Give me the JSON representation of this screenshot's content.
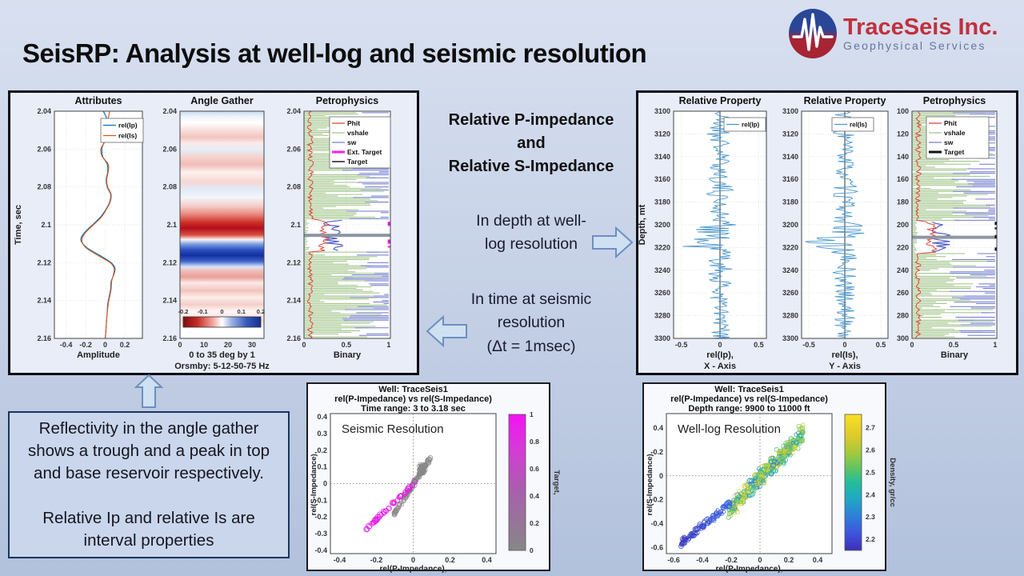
{
  "header": {
    "title": "SeisRP: Analysis at well-log and seismic resolution"
  },
  "logo": {
    "company": "TraceSeis Inc.",
    "tagline": "Geophysical Services",
    "brand_red": "#c2303c",
    "brand_blue": "#2a4697"
  },
  "middle": {
    "heading": "Relative P-impedance\nand\nRelative S-Impedance",
    "step_depth": "In depth at well-\nlog resolution",
    "step_time": "In time at seismic\nresolution\n(Δt = 1msec)"
  },
  "callout": {
    "text": "Reflectivity in the angle gather shows a trough and a peak in top and base reservoir respectively.\n\nRelative Ip and relative Is are interval properties"
  },
  "chart_data": [
    {
      "id": "attributes",
      "type": "line",
      "title": "Attributes",
      "xlabel_lines": [
        "Amplitude"
      ],
      "ylabel": "Time, sec",
      "xlim": [
        -0.52,
        0.38
      ],
      "ylim": [
        2.04,
        2.16
      ],
      "y_down": true,
      "xticks": [
        -0.4,
        -0.2,
        0,
        0.2
      ],
      "xtick_labels": [
        "-0.4",
        "-0.2",
        "0",
        "0.2"
      ],
      "yticks": [
        2.04,
        2.06,
        2.08,
        2.1,
        2.12,
        2.14,
        2.16
      ],
      "ytick_labels": [
        "2.04",
        "2.06",
        "2.08",
        "2.1",
        "2.12",
        "2.14",
        "2.16"
      ],
      "legend": [
        {
          "label": "rel(Ip)",
          "color": "#0072BD"
        },
        {
          "label": "rel(Is)",
          "color": "#D95319"
        }
      ],
      "series": [
        {
          "name": "rel(Ip)",
          "color": "#0072BD",
          "points": [
            [
              2.04,
              -0.02
            ],
            [
              2.044,
              0.015
            ],
            [
              2.048,
              0.01
            ],
            [
              2.052,
              0.0
            ],
            [
              2.056,
              -0.01
            ],
            [
              2.06,
              -0.035
            ],
            [
              2.064,
              -0.025
            ],
            [
              2.068,
              0.02
            ],
            [
              2.072,
              0.025
            ],
            [
              2.076,
              0.01
            ],
            [
              2.08,
              0.02
            ],
            [
              2.084,
              0.055
            ],
            [
              2.088,
              0.045
            ],
            [
              2.092,
              0.005
            ],
            [
              2.096,
              -0.05
            ],
            [
              2.1,
              -0.13
            ],
            [
              2.104,
              -0.21
            ],
            [
              2.108,
              -0.25
            ],
            [
              2.112,
              -0.19
            ],
            [
              2.116,
              -0.06
            ],
            [
              2.12,
              0.06
            ],
            [
              2.123,
              0.1
            ],
            [
              2.126,
              0.09
            ],
            [
              2.13,
              0.06
            ],
            [
              2.134,
              0.055
            ],
            [
              2.138,
              0.04
            ],
            [
              2.142,
              0.025
            ],
            [
              2.146,
              0.02
            ],
            [
              2.15,
              0.015
            ],
            [
              2.155,
              0.008
            ],
            [
              2.16,
              0.0
            ]
          ]
        },
        {
          "name": "rel(Is)",
          "color": "#D95319",
          "points": [
            [
              2.04,
              0.045
            ],
            [
              2.044,
              0.03
            ],
            [
              2.048,
              0.015
            ],
            [
              2.052,
              0.005
            ],
            [
              2.056,
              -0.005
            ],
            [
              2.06,
              -0.045
            ],
            [
              2.064,
              -0.03
            ],
            [
              2.068,
              0.03
            ],
            [
              2.072,
              0.03
            ],
            [
              2.076,
              0.015
            ],
            [
              2.08,
              0.025
            ],
            [
              2.084,
              0.06
            ],
            [
              2.088,
              0.05
            ],
            [
              2.092,
              0.01
            ],
            [
              2.096,
              -0.04
            ],
            [
              2.1,
              -0.12
            ],
            [
              2.104,
              -0.2
            ],
            [
              2.108,
              -0.24
            ],
            [
              2.112,
              -0.2
            ],
            [
              2.116,
              -0.08
            ],
            [
              2.12,
              0.05
            ],
            [
              2.123,
              0.09
            ],
            [
              2.126,
              0.085
            ],
            [
              2.13,
              0.065
            ],
            [
              2.134,
              0.06
            ],
            [
              2.138,
              0.045
            ],
            [
              2.142,
              0.03
            ],
            [
              2.146,
              0.022
            ],
            [
              2.15,
              0.015
            ],
            [
              2.155,
              0.008
            ],
            [
              2.16,
              0.0
            ]
          ]
        }
      ]
    },
    {
      "id": "angle",
      "type": "heatmap",
      "title": "Angle Gather",
      "xlabel_lines": [
        "0 to 35 deg by 1",
        "Orsmby: 5-12-50-75 Hz"
      ],
      "xlim": [
        0,
        35
      ],
      "ylim": [
        2.04,
        2.16
      ],
      "y_down": true,
      "xticks": [
        0,
        10,
        20,
        30
      ],
      "xtick_labels": [
        "0",
        "10",
        "20",
        "30"
      ],
      "yticks": [
        2.04,
        2.06,
        2.08,
        2.1,
        2.12,
        2.14,
        2.16
      ],
      "ytick_labels": [
        "2.04",
        "2.06",
        "2.08",
        "2.1",
        "2.12",
        "2.14",
        "2.16"
      ],
      "grid": false,
      "gradient_stops": [
        [
          0,
          "#c9dcf0"
        ],
        [
          0.025,
          "#eef4fb"
        ],
        [
          0.05,
          "#ffffff"
        ],
        [
          0.09,
          "#f7d9d6"
        ],
        [
          0.115,
          "#f2c4bf"
        ],
        [
          0.14,
          "#fbeae8"
        ],
        [
          0.17,
          "#e4edf8"
        ],
        [
          0.2,
          "#f6d3cf"
        ],
        [
          0.235,
          "#f0bdb7"
        ],
        [
          0.27,
          "#fdf1ef"
        ],
        [
          0.31,
          "#f6d7d3"
        ],
        [
          0.345,
          "#e2ebf7"
        ],
        [
          0.38,
          "#f2f6fb"
        ],
        [
          0.42,
          "#f5c9c4"
        ],
        [
          0.455,
          "#e8857c"
        ],
        [
          0.49,
          "#cc2f23"
        ],
        [
          0.515,
          "#b50d1c"
        ],
        [
          0.545,
          "#d95144"
        ],
        [
          0.565,
          "#fdf4f3"
        ],
        [
          0.585,
          "#7c9de0"
        ],
        [
          0.61,
          "#2b50c0"
        ],
        [
          0.635,
          "#132f9e"
        ],
        [
          0.66,
          "#3c63cc"
        ],
        [
          0.685,
          "#dbe4f6"
        ],
        [
          0.705,
          "#f1b9b3"
        ],
        [
          0.73,
          "#e89f97"
        ],
        [
          0.755,
          "#faeae8"
        ],
        [
          0.79,
          "#f3c3bd"
        ],
        [
          0.82,
          "#fceeec"
        ],
        [
          0.85,
          "#f5cdc8"
        ],
        [
          0.88,
          "#fdf6f5"
        ],
        [
          0.92,
          "#f8dedb"
        ],
        [
          0.96,
          "#ffffff"
        ],
        [
          1,
          "#fefefe"
        ]
      ],
      "colorbar": {
        "orient": "horizontal",
        "tick_labels": [
          "-0.2",
          "-0.1",
          "0",
          "0.1",
          "0.2"
        ],
        "stops": [
          [
            0,
            "#7f0e12"
          ],
          [
            0.18,
            "#c32c23"
          ],
          [
            0.38,
            "#f2a59b"
          ],
          [
            0.5,
            "#ffffff"
          ],
          [
            0.62,
            "#9db4e4"
          ],
          [
            0.82,
            "#3558bb"
          ],
          [
            1,
            "#15308f"
          ]
        ]
      }
    },
    {
      "id": "petroL",
      "type": "logs",
      "title": "Petrophysics",
      "xlabel_lines": [
        "Binary"
      ],
      "xlim": [
        0,
        1.02
      ],
      "ylim": [
        2.04,
        2.16
      ],
      "y_down": true,
      "xticks": [
        0,
        0.5,
        1
      ],
      "xtick_labels": [
        "0",
        "0.5",
        "1"
      ],
      "yticks": [
        2.04,
        2.06,
        2.08,
        2.1,
        2.12,
        2.14,
        2.16
      ],
      "ytick_labels": [
        "2.04",
        "2.06",
        "2.08",
        "2.1",
        "2.12",
        "2.14",
        "2.16"
      ],
      "legend": [
        {
          "label": "Phit",
          "color": "#e23b32",
          "lw": 1.2
        },
        {
          "label": "vshale",
          "color": "#9dc284",
          "lw": 1.2
        },
        {
          "label": "sw",
          "color": "#6f79d0",
          "lw": 1.2
        },
        {
          "label": "Ext. Target",
          "color": "#f020f0",
          "lw": 3
        },
        {
          "label": "Target",
          "color": "#555555",
          "lw": 2
        }
      ],
      "gen": {
        "seed": 7,
        "zone": [
          0.475,
          0.617
        ],
        "ext_target": true,
        "right_dashes": false
      }
    },
    {
      "id": "relIp",
      "type": "wlog",
      "title": "Relative Property",
      "xlabel_lines": [
        "rel(Ip),",
        "X - Axis"
      ],
      "ylabel": "Depth, mt",
      "xlim": [
        -0.6,
        0.6
      ],
      "ylim": [
        3100,
        3300
      ],
      "y_down": true,
      "xticks": [
        -0.5,
        0,
        0.5
      ],
      "xtick_labels": [
        "-0.5",
        "0",
        "0.5"
      ],
      "yticks": [
        3100,
        3120,
        3140,
        3160,
        3180,
        3200,
        3220,
        3240,
        3260,
        3280,
        3300
      ],
      "ytick_labels": [
        "3100",
        "3120",
        "3140",
        "3160",
        "3180",
        "3200",
        "3220",
        "3240",
        "3260",
        "3280",
        "3300"
      ],
      "legend": [
        {
          "label": "rel(Ip)",
          "color": "#4a97cd"
        }
      ],
      "gen": {
        "seed": 21
      }
    },
    {
      "id": "relIs",
      "type": "wlog",
      "title": "Relative Property",
      "xlabel_lines": [
        "rel(Is),",
        "Y - Axis"
      ],
      "xlim": [
        -0.6,
        0.6
      ],
      "ylim": [
        3100,
        3300
      ],
      "y_down": true,
      "xticks": [
        -0.5,
        0,
        0.5
      ],
      "xtick_labels": [
        "-0.5",
        "0",
        "0.5"
      ],
      "yticks": [
        3100,
        3120,
        3140,
        3160,
        3180,
        3200,
        3220,
        3240,
        3260,
        3280,
        3300
      ],
      "ytick_labels": [
        "3100",
        "3120",
        "3140",
        "3160",
        "3180",
        "3200",
        "3220",
        "3240",
        "3260",
        "3280",
        "3300"
      ],
      "legend": [
        {
          "label": "rel(Is)",
          "color": "#4a97cd"
        }
      ],
      "gen": {
        "seed": 33
      }
    },
    {
      "id": "petroR",
      "type": "logs",
      "title": "Petrophysics",
      "xlabel_lines": [
        "Binary"
      ],
      "xlim": [
        0,
        1.02
      ],
      "ylim": [
        3100,
        3300
      ],
      "y_down": true,
      "xticks": [
        0,
        0.5,
        1
      ],
      "xtick_labels": [
        "0",
        "0.5",
        "1"
      ],
      "yticks": [
        3100,
        3120,
        3140,
        3160,
        3180,
        3200,
        3220,
        3240,
        3260,
        3280,
        3300
      ],
      "ytick_labels": [
        "100",
        "120",
        "140",
        "160",
        "180",
        "200",
        "220",
        "240",
        "260",
        "280",
        "300"
      ],
      "ylim_full_labels": [
        "3100",
        "3300"
      ],
      "legend": [
        {
          "label": "Phit",
          "color": "#e23b32",
          "lw": 1.2
        },
        {
          "label": "vshale",
          "color": "#9dc284",
          "lw": 1.2
        },
        {
          "label": "sw",
          "color": "#6f79d0",
          "lw": 1.2
        },
        {
          "label": "Target",
          "color": "#111111",
          "lw": 3
        }
      ],
      "gen": {
        "seed": 11,
        "zone": [
          0.485,
          0.625
        ],
        "ext_target": false,
        "right_dashes": true
      }
    },
    {
      "id": "seis",
      "type": "scatter",
      "title_lines": [
        "Well: TraceSeis1",
        "rel(P-Impedance) vs rel(S-Impedance)",
        "Time range: 3 to 3.18 sec"
      ],
      "annotation": "Seismic Resolution",
      "xlabel_lines": [
        "rel(P-Impedance),"
      ],
      "ylabel": "rel(S-Impedance),",
      "xlim": [
        -0.45,
        0.45
      ],
      "ylim": [
        -0.42,
        0.42
      ],
      "xticks": [
        -0.4,
        -0.2,
        0,
        0.2,
        0.4
      ],
      "xtick_labels": [
        "-0.4",
        "-0.2",
        "0",
        "0.2",
        "0.4"
      ],
      "yticks": [
        0.4,
        0.3,
        0.2,
        0.1,
        0,
        -0.1,
        -0.2,
        -0.3,
        -0.4
      ],
      "ytick_labels": [
        "0.4",
        "0.3",
        "0.2",
        "0.1",
        "0",
        "-0.1",
        "-0.2",
        "-0.3",
        "-0.4"
      ],
      "groups": [
        {
          "kind": "diag",
          "n": 115,
          "x0": -0.105,
          "x1": 0.095,
          "slope": 1.7,
          "icpt": -0.005,
          "jy": 0.022,
          "color": "#8a8a8a"
        },
        {
          "kind": "blob",
          "n": 55,
          "cx": 0.05,
          "cy": 0.085,
          "sx": 0.022,
          "sy": 0.038,
          "color": "#8a8a8a"
        },
        {
          "kind": "diag",
          "n": 46,
          "x0": -0.255,
          "x1": 0.012,
          "slope": 1.06,
          "icpt": -0.004,
          "jy": 0.009,
          "color": "#e31ae3",
          "big": true
        }
      ],
      "colorbar": {
        "label": "Target,",
        "vmin": 0,
        "vmax": 1,
        "ticks": [
          0,
          0.2,
          0.4,
          0.6,
          0.8,
          1
        ],
        "tick_labels": [
          "0",
          "0.2",
          "0.4",
          "0.6",
          "0.8",
          "1"
        ],
        "stops": [
          [
            0,
            "#878787"
          ],
          [
            0.45,
            "#a95fae"
          ],
          [
            0.75,
            "#d63ad6"
          ],
          [
            1,
            "#f312f3"
          ]
        ]
      }
    },
    {
      "id": "well",
      "type": "scatter",
      "title_lines": [
        "Well: TraceSeis1",
        "rel(P-Impedance) vs rel(S-Impedance)",
        "Depth range: 9900 to 11000 ft"
      ],
      "annotation": "Well-log Resolution",
      "xlabel_lines": [
        "rel(P-Impedance),"
      ],
      "ylabel": "rel(S-Impedance),",
      "xlim": [
        -0.65,
        0.5
      ],
      "ylim": [
        -0.65,
        0.52
      ],
      "xticks": [
        -0.6,
        -0.4,
        -0.2,
        0,
        0.2,
        0.4
      ],
      "xtick_labels": [
        "-0.6",
        "-0.4",
        "-0.2",
        "0",
        "0.2",
        "0.4"
      ],
      "yticks": [
        0.4,
        0.2,
        0,
        -0.2,
        -0.4,
        -0.6
      ],
      "ytick_labels": [
        "0.4",
        "0.2",
        "0",
        "-0.2",
        "-0.4",
        "-0.6"
      ],
      "groups": [
        {
          "kind": "diag",
          "n": 430,
          "x0": -0.22,
          "x1": 0.3,
          "slope": 1.25,
          "icpt": -0.02,
          "jy": 0.09,
          "colorRule": "warmMix",
          "pow": 0.9
        },
        {
          "kind": "diag",
          "n": 110,
          "x0": -0.55,
          "x1": -0.2,
          "slope": 1.0,
          "icpt": -0.02,
          "jy": 0.035,
          "colorRule": "coolTail"
        }
      ],
      "colorbar": {
        "label": "Density, gr/cc",
        "vmin": 2.15,
        "vmax": 2.76,
        "ticks": [
          2.2,
          2.3,
          2.4,
          2.5,
          2.6,
          2.7
        ],
        "tick_labels": [
          "2.2",
          "2.3",
          "2.4",
          "2.5",
          "2.6",
          "2.7"
        ],
        "stops": [
          [
            0,
            "#3d2fb8"
          ],
          [
            0.12,
            "#3f51dd"
          ],
          [
            0.25,
            "#2f7fd8"
          ],
          [
            0.38,
            "#1fa8c4"
          ],
          [
            0.5,
            "#25bd9a"
          ],
          [
            0.6,
            "#5ec464"
          ],
          [
            0.72,
            "#a4ca3c"
          ],
          [
            0.85,
            "#e0cb2b"
          ],
          [
            1,
            "#f9df24"
          ]
        ]
      }
    }
  ]
}
